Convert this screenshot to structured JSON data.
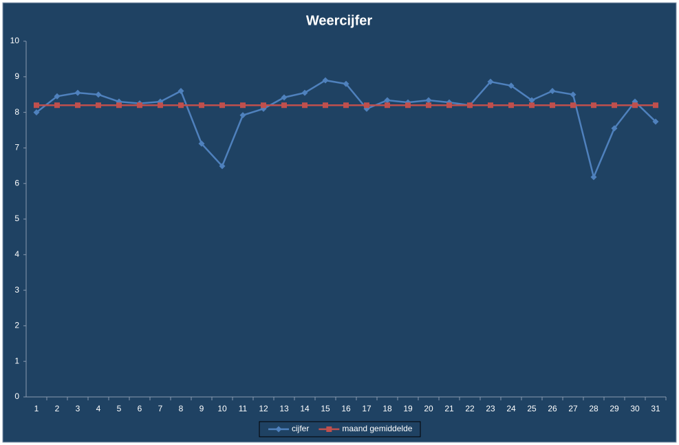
{
  "chart_data": {
    "type": "line",
    "title": "Weercijfer",
    "categories": [
      "1",
      "2",
      "3",
      "4",
      "5",
      "6",
      "7",
      "8",
      "9",
      "10",
      "11",
      "12",
      "13",
      "14",
      "15",
      "16",
      "17",
      "18",
      "19",
      "20",
      "21",
      "22",
      "23",
      "24",
      "25",
      "26",
      "27",
      "28",
      "29",
      "30",
      "31"
    ],
    "series": [
      {
        "name": "cijfer",
        "color": "#4f81bd",
        "marker": "diamond",
        "values": [
          8.0,
          8.45,
          8.55,
          8.5,
          8.3,
          8.25,
          8.3,
          8.6,
          7.12,
          6.49,
          7.92,
          8.1,
          8.42,
          8.55,
          8.9,
          8.8,
          8.1,
          8.34,
          8.28,
          8.34,
          8.28,
          8.2,
          8.86,
          8.75,
          8.34,
          8.6,
          8.5,
          6.18,
          7.55,
          8.3,
          7.74
        ]
      },
      {
        "name": "maand gemiddelde",
        "color": "#c0504d",
        "marker": "square",
        "values": [
          8.2,
          8.2,
          8.2,
          8.2,
          8.2,
          8.2,
          8.2,
          8.2,
          8.2,
          8.2,
          8.2,
          8.2,
          8.2,
          8.2,
          8.2,
          8.2,
          8.2,
          8.2,
          8.2,
          8.2,
          8.2,
          8.2,
          8.2,
          8.2,
          8.2,
          8.2,
          8.2,
          8.2,
          8.2,
          8.2,
          8.2
        ]
      }
    ],
    "ylim": [
      0,
      10
    ],
    "yticks": [
      0,
      1,
      2,
      3,
      4,
      5,
      6,
      7,
      8,
      9,
      10
    ],
    "grid": false,
    "legend": "bottom"
  }
}
